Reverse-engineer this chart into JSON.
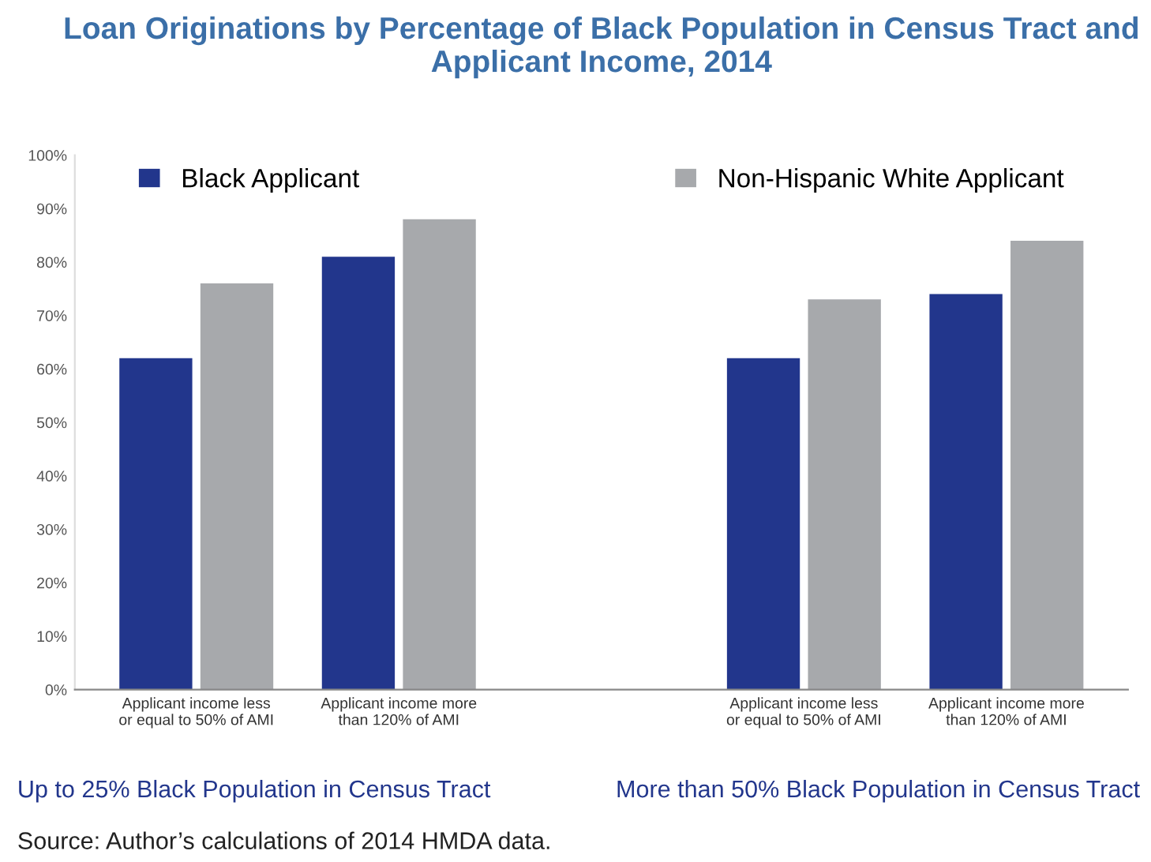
{
  "chart_data": {
    "type": "bar",
    "title": "Loan Originations by Percentage of Black Population in Census Tract and Applicant Income, 2014",
    "categories": [
      "Applicant income less or equal to 50% of AMI",
      "Applicant income more than 120% of AMI",
      null,
      "Applicant income less or equal to 50% of AMI",
      "Applicant income more than 120% of AMI"
    ],
    "series": [
      {
        "name": "Black Applicant",
        "color": "#22368c",
        "values": [
          62,
          81,
          null,
          62,
          74
        ]
      },
      {
        "name": "Non-Hispanic White Applicant",
        "color": "#a7a9ac",
        "values": [
          76,
          88,
          null,
          73,
          84
        ]
      }
    ],
    "ylim": [
      0,
      100
    ],
    "yticks": [
      {
        "value": 0,
        "label": "0%"
      },
      {
        "value": 10,
        "label": "10%"
      },
      {
        "value": 20,
        "label": "20%"
      },
      {
        "value": 30,
        "label": "30%"
      },
      {
        "value": 40,
        "label": "40%"
      },
      {
        "value": 50,
        "label": "50%"
      },
      {
        "value": 60,
        "label": "60%"
      },
      {
        "value": 70,
        "label": "70%"
      },
      {
        "value": 80,
        "label": "80%"
      },
      {
        "value": 90,
        "label": "90%"
      },
      {
        "value": 100,
        "label": "100%"
      }
    ],
    "grid": false,
    "legend": "top",
    "annotations": [
      "Up to 25% Black Population in Census Tract",
      "More than 50% Black Population in Census Tract",
      "Source: Author’s calculations of 2014 HMDA data."
    ]
  }
}
